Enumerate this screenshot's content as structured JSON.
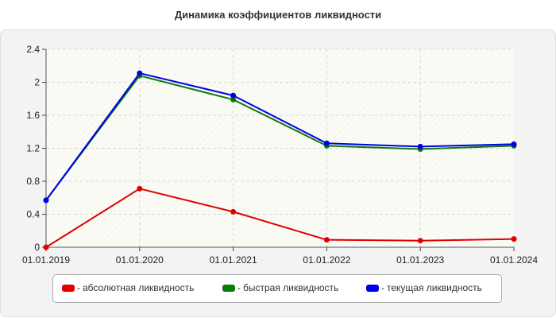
{
  "chart_data": {
    "type": "line",
    "title": "Динамика коэффициентов ликвидности",
    "categories": [
      "01.01.2019",
      "01.01.2020",
      "01.01.2021",
      "01.01.2022",
      "01.01.2023",
      "01.01.2024"
    ],
    "ylim": [
      0,
      2.4
    ],
    "yticks": [
      "0",
      "0.4",
      "0.8",
      "1.2",
      "1.6",
      "2",
      "2.4"
    ],
    "grid": true,
    "legend_position": "bottom",
    "series": [
      {
        "name": "абсолютная ликвидность",
        "values": [
          0.0,
          0.71,
          0.43,
          0.09,
          0.08,
          0.1
        ],
        "color": "#e00000"
      },
      {
        "name": "быстрая ликвидность",
        "values": [
          0.57,
          2.08,
          1.79,
          1.23,
          1.19,
          1.23
        ],
        "color": "#0a7a0a"
      },
      {
        "name": "текущая ликвидность",
        "values": [
          0.57,
          2.11,
          1.84,
          1.26,
          1.22,
          1.25
        ],
        "color": "#0000e8"
      }
    ]
  },
  "legend": {
    "dash": "-",
    "items": [
      {
        "label": "абсолютная ликвидность",
        "color": "#e00000"
      },
      {
        "label": "быстрая ликвидность",
        "color": "#0a7a0a"
      },
      {
        "label": "текущая ликвидность",
        "color": "#0000e8"
      }
    ]
  }
}
